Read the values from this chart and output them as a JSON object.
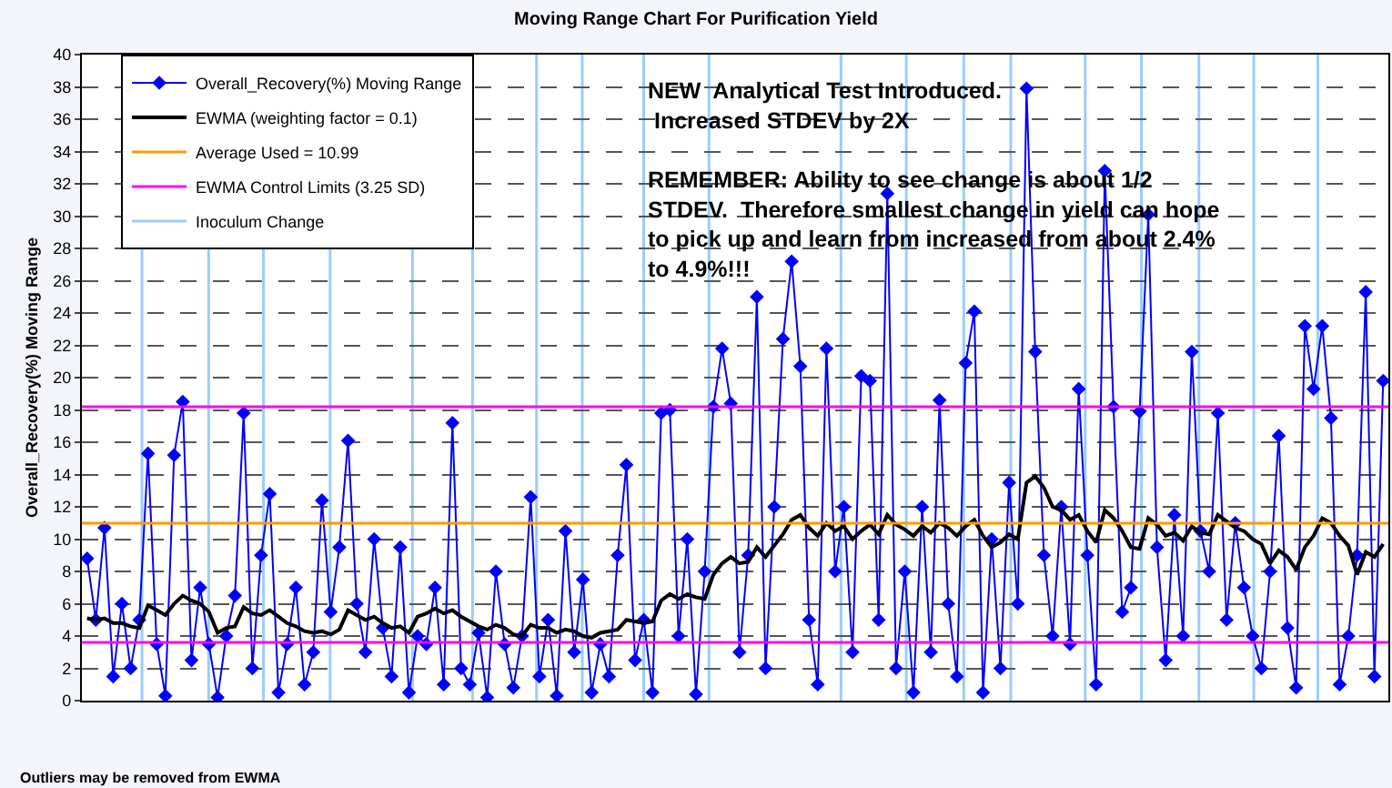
{
  "chart_data": {
    "type": "line",
    "title": "Moving Range Chart For Purification Yield",
    "ylabel": "Overall_Recovery(%) Moving Range",
    "categories": [
      null,
      null,
      null,
      null,
      null,
      null,
      null,
      null,
      null,
      null,
      null,
      null,
      null,
      null,
      null,
      null,
      null,
      null,
      null,
      null,
      null,
      null,
      null,
      null,
      null,
      null,
      null,
      null,
      null,
      null,
      null,
      null,
      null,
      null,
      null,
      null,
      null,
      null,
      null,
      null,
      null,
      null,
      null,
      null,
      null,
      null,
      null,
      null,
      null,
      null,
      null,
      null,
      null,
      null,
      null,
      null,
      null,
      null,
      null,
      null,
      null,
      null,
      null,
      null,
      null,
      null,
      null,
      null,
      null,
      null,
      null,
      null,
      null,
      null,
      null,
      null,
      null,
      null,
      null,
      null,
      null,
      null,
      null,
      null,
      null,
      null,
      null,
      null,
      null,
      null,
      null,
      null,
      null,
      null,
      null,
      null,
      null,
      null,
      null,
      null,
      null,
      null,
      null,
      null,
      null,
      null,
      null,
      null,
      null,
      null,
      null,
      null,
      null,
      null,
      null,
      null,
      null,
      null,
      null,
      null,
      null,
      null,
      null,
      null,
      null,
      null,
      null,
      null,
      null,
      null,
      null,
      null,
      null,
      null,
      null,
      null,
      null,
      null,
      null,
      null,
      null,
      null,
      null,
      null,
      null,
      null,
      null,
      null,
      null,
      null
    ],
    "series": [
      {
        "name": "Overall_Recovery(%) Moving Range",
        "color": "#0000ff",
        "marker": "diamond",
        "values": [
          8.8,
          5,
          10.7,
          1.5,
          6,
          2,
          5,
          15.3,
          3.5,
          0.3,
          15.2,
          18.5,
          2.5,
          7,
          3.5,
          0.2,
          4,
          6.5,
          17.8,
          2,
          9,
          12.8,
          0.5,
          3.5,
          7,
          1,
          3,
          12.4,
          5.5,
          9.5,
          16.1,
          6,
          3,
          10,
          4.5,
          1.5,
          9.5,
          0.5,
          4,
          3.5,
          7,
          1,
          17.2,
          2,
          1,
          4.2,
          0.2,
          8,
          3.5,
          0.8,
          4,
          12.6,
          1.5,
          5,
          0.3,
          10.5,
          3,
          7.5,
          0.5,
          3.5,
          1.5,
          9,
          14.6,
          2.5,
          5,
          0.5,
          17.8,
          18,
          4,
          10,
          0.4,
          8,
          18.2,
          21.8,
          18.4,
          3,
          9,
          25,
          2,
          12,
          22.4,
          27.2,
          20.7,
          5,
          1,
          21.8,
          8,
          12,
          3,
          20.1,
          19.8,
          5,
          31.4,
          2,
          8,
          0.5,
          12,
          3,
          18.6,
          6,
          1.5,
          20.9,
          24.1,
          0.5,
          10,
          2,
          13.5,
          6,
          37.9,
          21.6,
          9,
          4,
          12,
          3.5,
          19.3,
          9,
          1,
          32.8,
          18.2,
          5.5,
          7,
          17.9,
          30.1,
          9.5,
          2.5,
          11.5,
          4,
          21.6,
          10.5,
          8,
          17.8,
          5,
          11,
          7,
          4,
          2,
          8,
          16.4,
          4.5,
          0.8,
          23.2,
          19.3,
          23.2,
          17.5,
          1,
          4,
          9,
          25.3,
          1.5,
          19.8
        ]
      },
      {
        "name": "EWMA (weighting factor = 0.1)",
        "color": "#000000",
        "marker": "none",
        "values": [
          5.1,
          5,
          5.1,
          4.8,
          4.8,
          4.6,
          4.5,
          5.9,
          5.6,
          5.3,
          6,
          6.5,
          6.2,
          6,
          5.5,
          4.2,
          4.5,
          4.6,
          5.8,
          5.4,
          5.3,
          5.6,
          5.2,
          4.8,
          4.6,
          4.3,
          4.2,
          4.3,
          4.1,
          4.4,
          5.6,
          5.3,
          5,
          5.2,
          4.8,
          4.5,
          4.6,
          4.2,
          5.2,
          5.4,
          5.7,
          5.4,
          5.6,
          5.2,
          4.9,
          4.6,
          4.4,
          4.7,
          4.5,
          4.1,
          4,
          4.7,
          4.5,
          4.5,
          4.2,
          4.4,
          4.3,
          4,
          3.9,
          4.2,
          4.3,
          4.4,
          5,
          4.9,
          4.8,
          4.9,
          6.2,
          6.6,
          6.3,
          6.6,
          6.4,
          6.3,
          7.8,
          8.5,
          8.9,
          8.5,
          8.6,
          9.5,
          8.9,
          9.6,
          10.3,
          11.2,
          11.5,
          10.7,
          10.2,
          11,
          10.5,
          10.8,
          10,
          10.5,
          10.9,
          10.3,
          11.5,
          10.9,
          10.6,
          10.2,
          10.8,
          10.4,
          11,
          10.7,
          10.2,
          10.8,
          11.2,
          10.2,
          9.5,
          9.8,
          10.3,
          10,
          13.5,
          13.9,
          13.2,
          12,
          11.8,
          11.2,
          11.5,
          10.5,
          9.8,
          11.8,
          11.3,
          10.5,
          9.5,
          9.4,
          11.3,
          10.9,
          10.2,
          10.4,
          9.9,
          10.8,
          10.4,
          10.3,
          11.5,
          11.1,
          10.7,
          10.5,
          10,
          9.7,
          8.5,
          9.3,
          8.9,
          8.1,
          9.5,
          10.2,
          11.3,
          11,
          10.2,
          9.6,
          7.8,
          9.2,
          8.9,
          9.7
        ]
      }
    ],
    "ref_lines": [
      {
        "axis": "y",
        "value": 10.99,
        "label": "Average Used = 10.99",
        "color": "#ff9900"
      },
      {
        "axis": "y",
        "value": 18.2,
        "label": "EWMA Control Limits (3.25 SD)",
        "color": "#ff00ff"
      },
      {
        "axis": "y",
        "value": 3.6,
        "label": null,
        "color": "#ff00ff"
      }
    ],
    "annotations": [
      "NEW  Analytical Test Introduced.\n Increased STDEV by 2X",
      "REMEMBER: Ability to see change is about 1/2\nSTDEV.  Therefore smallest change in yield can hope\nto pick up and learn from increased from about 2.4%\nto 4.9%!!!",
      "Outliers may be removed from EWMA",
      "Inoculum Change"
    ],
    "ylim": [
      0,
      40
    ],
    "yticks": [
      0,
      2,
      4,
      6,
      8,
      10,
      12,
      14,
      16,
      18,
      20,
      22,
      24,
      26,
      28,
      30,
      32,
      34,
      36,
      38,
      40
    ],
    "grid": "y",
    "legend": "top left",
    "tick_labels": "y"
  }
}
